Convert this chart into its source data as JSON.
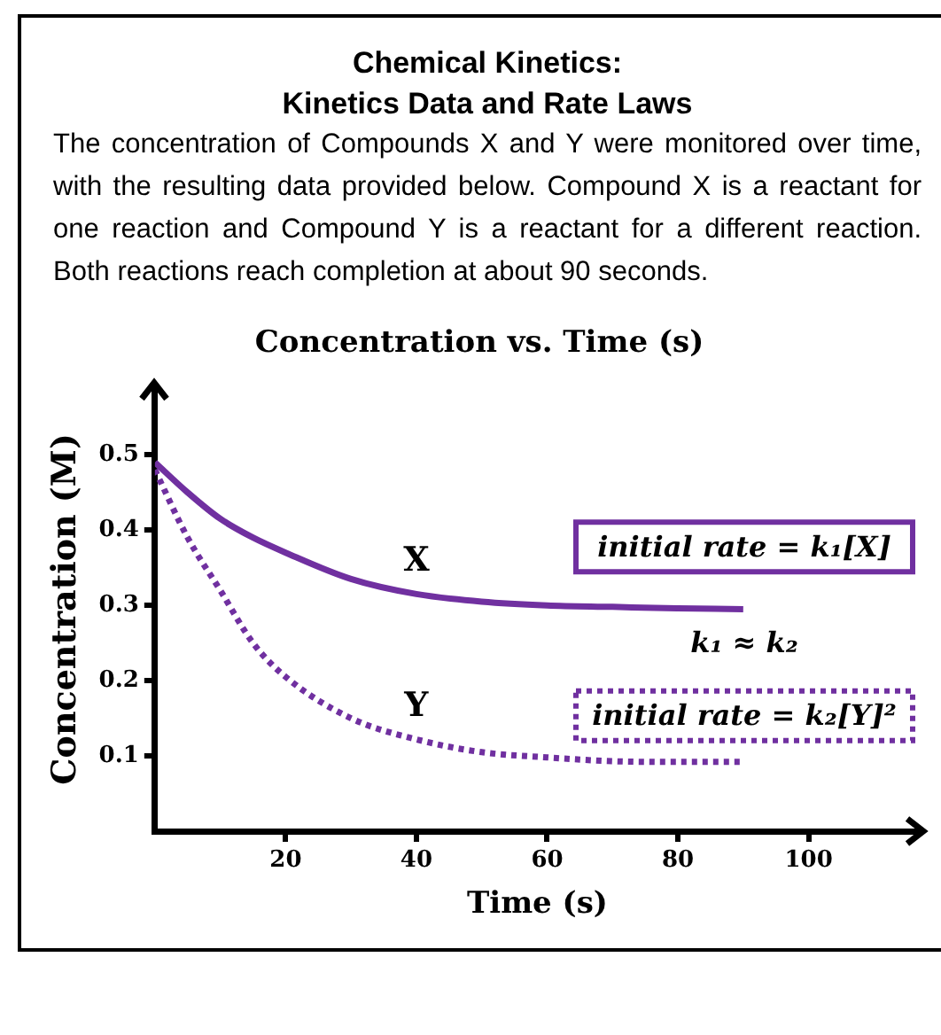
{
  "chart_data": {
    "type": "line",
    "title": "Concentration vs. Time (s)",
    "xlabel": "Time (s)",
    "ylabel": "Concentration (M)",
    "subtitle": "The concentration of Compounds X and Y were monitored over time, with the resulting data provided below. Compound X is a reactant for one reaction and Compound Y is a reactant for a different reaction. Both reactions reach completion at about 90 seconds.",
    "annotations": [
      "Chemical Kinetics:",
      "Kinetics Data and Rate Laws",
      "initial rate = k₁[X]",
      "initial rate = k₂[Y]²",
      "k₁ ≈ k₂"
    ],
    "x": [
      0,
      5,
      10,
      15,
      20,
      30,
      40,
      50,
      60,
      70,
      80,
      90
    ],
    "series": [
      {
        "name": "X",
        "color": "#7030a0",
        "line_style": "solid",
        "values": [
          0.49,
          0.45,
          0.415,
          0.39,
          0.37,
          0.335,
          0.315,
          0.305,
          0.3,
          0.298,
          0.296,
          0.295
        ]
      },
      {
        "name": "Y",
        "color": "#7030a0",
        "line_style": "dotted",
        "values": [
          0.48,
          0.39,
          0.32,
          0.25,
          0.205,
          0.15,
          0.122,
          0.105,
          0.098,
          0.093,
          0.092,
          0.092
        ]
      }
    ],
    "xlim": [
      0,
      117
    ],
    "ylim": [
      0,
      0.59
    ],
    "xticks": [
      20,
      40,
      60,
      80,
      100
    ],
    "yticks": [
      0.1,
      0.2,
      0.3,
      0.4,
      0.5
    ],
    "grid": false,
    "legend": false,
    "marker": "none"
  }
}
